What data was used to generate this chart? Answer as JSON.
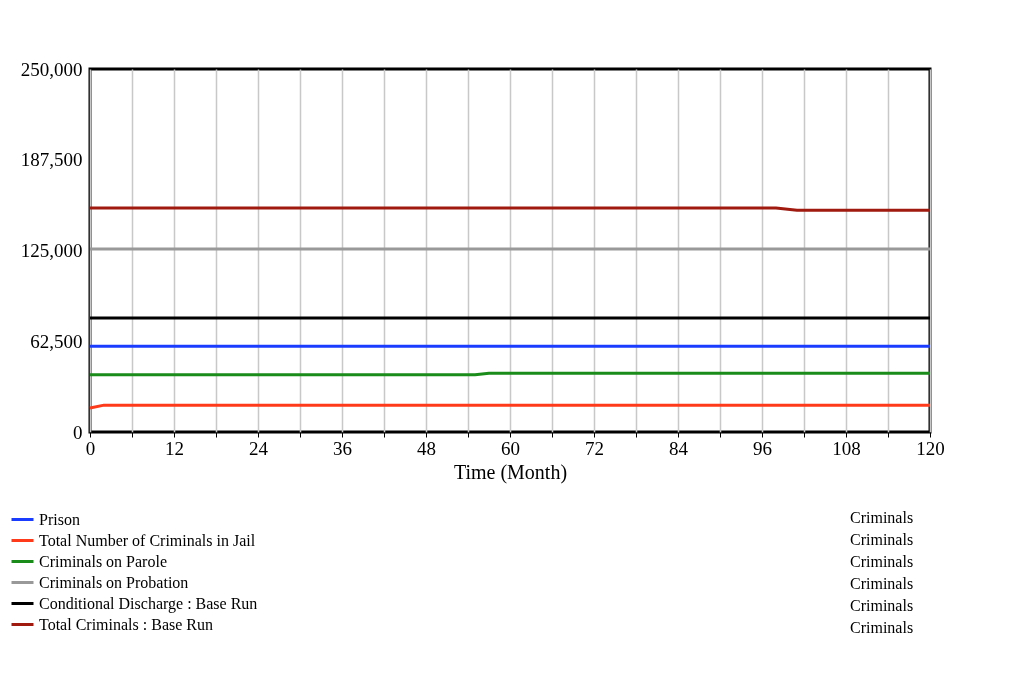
{
  "chart_data": {
    "type": "line",
    "xlabel": "Time (Month)",
    "xlim": [
      0,
      120
    ],
    "xticks": [
      0,
      {
        "value": 6,
        "label": null
      },
      12,
      {
        "value": 18,
        "label": null
      },
      24,
      {
        "value": 30,
        "label": null
      },
      36,
      {
        "value": 42,
        "label": null
      },
      48,
      {
        "value": 54,
        "label": null
      },
      60,
      {
        "value": 66,
        "label": null
      },
      72,
      {
        "value": 78,
        "label": null
      },
      84,
      {
        "value": 90,
        "label": null
      },
      96,
      {
        "value": 102,
        "label": null
      },
      108,
      {
        "value": 114,
        "label": null
      },
      120
    ],
    "ylim": [
      0,
      250000
    ],
    "yticks": [
      {
        "value": 0,
        "label": "0"
      },
      {
        "value": 62500,
        "label": "62,500"
      },
      {
        "value": 125000,
        "label": "125,000"
      },
      {
        "value": 187500,
        "label": "187,500"
      },
      {
        "value": 250000,
        "label": "250,000"
      }
    ],
    "grid": "x",
    "legend": "bottom",
    "series": [
      {
        "name": "Prison",
        "color": "#1a3cff",
        "x": [
          0,
          120
        ],
        "values": [
          59000,
          59000
        ]
      },
      {
        "name": "Total Number of Criminals in Jail",
        "color": "#ff3a1a",
        "x": [
          0,
          2,
          120
        ],
        "values": [
          16500,
          18500,
          18500
        ]
      },
      {
        "name": "Criminals on Parole",
        "color": "#1a8c1a",
        "x": [
          0,
          55,
          57,
          120
        ],
        "values": [
          39500,
          39500,
          40500,
          40500
        ]
      },
      {
        "name": "Criminals on Probation",
        "color": "#999999",
        "x": [
          0,
          120
        ],
        "values": [
          126000,
          126000
        ]
      },
      {
        "name": "Conditional Discharge : Base Run",
        "color": "#000000",
        "x": [
          0,
          120
        ],
        "values": [
          78500,
          78500
        ]
      },
      {
        "name": "Total Criminals : Base Run",
        "color": "#a01a10",
        "x": [
          0,
          98,
          101,
          120
        ],
        "values": [
          154300,
          154300,
          152800,
          152800
        ]
      }
    ],
    "annotations": [
      "Criminals",
      "Criminals",
      "Criminals",
      "Criminals",
      "Criminals",
      "Criminals"
    ]
  }
}
